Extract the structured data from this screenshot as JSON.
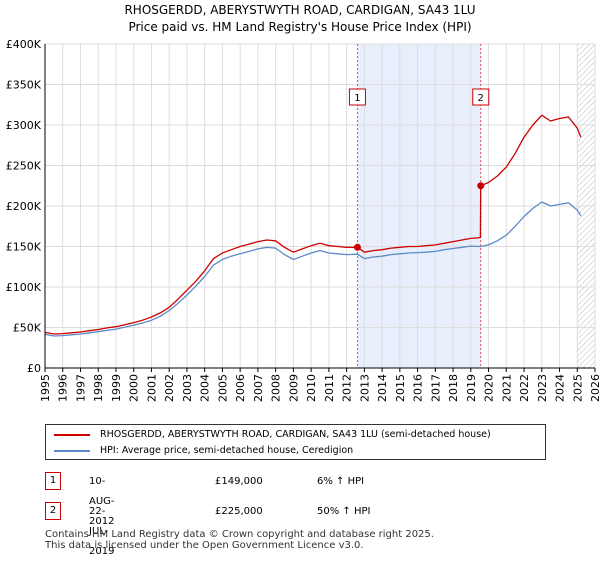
{
  "title_line1": "RHOSGERDD, ABERYSTWYTH ROAD, CARDIGAN, SA43 1LU",
  "title_line2": "Price paid vs. HM Land Registry's House Price Index (HPI)",
  "chart_data": {
    "type": "line",
    "x_range": [
      1995,
      2026
    ],
    "ylim": [
      0,
      400000
    ],
    "y_ticks": [
      {
        "value": 0,
        "label": "£0"
      },
      {
        "value": 50000,
        "label": "£50K"
      },
      {
        "value": 100000,
        "label": "£100K"
      },
      {
        "value": 150000,
        "label": "£150K"
      },
      {
        "value": 200000,
        "label": "£200K"
      },
      {
        "value": 250000,
        "label": "£250K"
      },
      {
        "value": 300000,
        "label": "£300K"
      },
      {
        "value": 350000,
        "label": "£350K"
      },
      {
        "value": 400000,
        "label": "£400K"
      }
    ],
    "x_ticks": [
      "1995",
      "1996",
      "1997",
      "1998",
      "1999",
      "2000",
      "2001",
      "2002",
      "2003",
      "2004",
      "2005",
      "2006",
      "2007",
      "2008",
      "2009",
      "2010",
      "2011",
      "2012",
      "2013",
      "2014",
      "2015",
      "2016",
      "2017",
      "2018",
      "2019",
      "2020",
      "2021",
      "2022",
      "2023",
      "2024",
      "2025",
      "2026"
    ],
    "grid": true,
    "shaded_period": [
      2012.61,
      2019.56
    ],
    "forecast_hatch_from": 2025.0,
    "series": [
      {
        "name": "RHOSGERDD, ABERYSTWYTH ROAD, CARDIGAN, SA43 1LU (semi-detached house)",
        "color": "#cc0000",
        "points": [
          [
            1995.0,
            44000
          ],
          [
            1995.5,
            42000
          ],
          [
            1996.0,
            42500
          ],
          [
            1996.5,
            43500
          ],
          [
            1997.0,
            44500
          ],
          [
            1997.5,
            46000
          ],
          [
            1998.0,
            47500
          ],
          [
            1998.5,
            49500
          ],
          [
            1999.0,
            51000
          ],
          [
            1999.5,
            53500
          ],
          [
            2000.0,
            56000
          ],
          [
            2000.5,
            59000
          ],
          [
            2001.0,
            63000
          ],
          [
            2001.5,
            68000
          ],
          [
            2002.0,
            75000
          ],
          [
            2002.5,
            85000
          ],
          [
            2003.0,
            96000
          ],
          [
            2003.5,
            107000
          ],
          [
            2004.0,
            120000
          ],
          [
            2004.5,
            135000
          ],
          [
            2005.0,
            142000
          ],
          [
            2005.5,
            146000
          ],
          [
            2006.0,
            150000
          ],
          [
            2006.5,
            153000
          ],
          [
            2007.0,
            156000
          ],
          [
            2007.5,
            158000
          ],
          [
            2008.0,
            157000
          ],
          [
            2008.5,
            149000
          ],
          [
            2009.0,
            143000
          ],
          [
            2009.5,
            147000
          ],
          [
            2010.0,
            151000
          ],
          [
            2010.5,
            154000
          ],
          [
            2011.0,
            151000
          ],
          [
            2011.5,
            150000
          ],
          [
            2012.0,
            149000
          ],
          [
            2012.61,
            149000
          ],
          [
            2013.0,
            143000
          ],
          [
            2013.5,
            145000
          ],
          [
            2014.0,
            146000
          ],
          [
            2014.5,
            148000
          ],
          [
            2015.0,
            149000
          ],
          [
            2015.5,
            150000
          ],
          [
            2016.0,
            150000
          ],
          [
            2016.5,
            151000
          ],
          [
            2017.0,
            152000
          ],
          [
            2017.5,
            154000
          ],
          [
            2018.0,
            156000
          ],
          [
            2018.5,
            158000
          ],
          [
            2019.0,
            160000
          ],
          [
            2019.54,
            161000
          ],
          [
            2019.56,
            225000
          ],
          [
            2020.0,
            229000
          ],
          [
            2020.5,
            237000
          ],
          [
            2021.0,
            248000
          ],
          [
            2021.5,
            265000
          ],
          [
            2022.0,
            285000
          ],
          [
            2022.5,
            300000
          ],
          [
            2023.0,
            312000
          ],
          [
            2023.5,
            305000
          ],
          [
            2024.0,
            308000
          ],
          [
            2024.5,
            310000
          ],
          [
            2025.0,
            296000
          ],
          [
            2025.2,
            285000
          ]
        ]
      },
      {
        "name": "HPI: Average price, semi-detached house, Ceredigion",
        "color": "#5b8bc8",
        "points": [
          [
            1995.0,
            41500
          ],
          [
            1995.5,
            39500
          ],
          [
            1996.0,
            40000
          ],
          [
            1996.5,
            41000
          ],
          [
            1997.0,
            42000
          ],
          [
            1997.5,
            43500
          ],
          [
            1998.0,
            44800
          ],
          [
            1998.5,
            46500
          ],
          [
            1999.0,
            48000
          ],
          [
            1999.5,
            50500
          ],
          [
            2000.0,
            53000
          ],
          [
            2000.5,
            55500
          ],
          [
            2001.0,
            59000
          ],
          [
            2001.5,
            64000
          ],
          [
            2002.0,
            71000
          ],
          [
            2002.5,
            80000
          ],
          [
            2003.0,
            90000
          ],
          [
            2003.5,
            101000
          ],
          [
            2004.0,
            113000
          ],
          [
            2004.5,
            127000
          ],
          [
            2005.0,
            134000
          ],
          [
            2005.5,
            138000
          ],
          [
            2006.0,
            141000
          ],
          [
            2006.5,
            144000
          ],
          [
            2007.0,
            147000
          ],
          [
            2007.5,
            149000
          ],
          [
            2008.0,
            148000
          ],
          [
            2008.5,
            140000
          ],
          [
            2009.0,
            134000
          ],
          [
            2009.5,
            138000
          ],
          [
            2010.0,
            142000
          ],
          [
            2010.5,
            145000
          ],
          [
            2011.0,
            142000
          ],
          [
            2011.5,
            141000
          ],
          [
            2012.0,
            140000
          ],
          [
            2012.61,
            140500
          ],
          [
            2013.0,
            135000
          ],
          [
            2013.5,
            137000
          ],
          [
            2014.0,
            138000
          ],
          [
            2014.5,
            140000
          ],
          [
            2015.0,
            141000
          ],
          [
            2015.5,
            142000
          ],
          [
            2016.0,
            142500
          ],
          [
            2016.5,
            143000
          ],
          [
            2017.0,
            144000
          ],
          [
            2017.5,
            146000
          ],
          [
            2018.0,
            147500
          ],
          [
            2018.5,
            149000
          ],
          [
            2019.0,
            150500
          ],
          [
            2019.56,
            150000
          ],
          [
            2020.0,
            152000
          ],
          [
            2020.5,
            157000
          ],
          [
            2021.0,
            164000
          ],
          [
            2021.5,
            175000
          ],
          [
            2022.0,
            187000
          ],
          [
            2022.5,
            197000
          ],
          [
            2023.0,
            205000
          ],
          [
            2023.5,
            200000
          ],
          [
            2024.0,
            202000
          ],
          [
            2024.5,
            204000
          ],
          [
            2025.0,
            195000
          ],
          [
            2025.2,
            188000
          ]
        ]
      }
    ],
    "sales": [
      {
        "marker": "1",
        "x": 2012.61,
        "price": 149000
      },
      {
        "marker": "2",
        "x": 2019.56,
        "price": 225000
      }
    ]
  },
  "legend": {
    "property_label": "RHOSGERDD, ABERYSTWYTH ROAD, CARDIGAN, SA43 1LU (semi-detached house)",
    "hpi_label": "HPI: Average price, semi-detached house, Ceredigion"
  },
  "transactions": [
    {
      "num": "1",
      "date": "10-AUG-2012",
      "price": "£149,000",
      "hpi": "6% ↑ HPI"
    },
    {
      "num": "2",
      "date": "22-JUL-2019",
      "price": "£225,000",
      "hpi": "50% ↑ HPI"
    }
  ],
  "footer_line1": "Contains HM Land Registry data © Crown copyright and database right 2025.",
  "footer_line2": "This data is licensed under the Open Government Licence v3.0.",
  "colors": {
    "property": "#cc0000",
    "hpi": "#5b8bc8",
    "shade": "#e8eefb",
    "grid": "#dddddd"
  }
}
